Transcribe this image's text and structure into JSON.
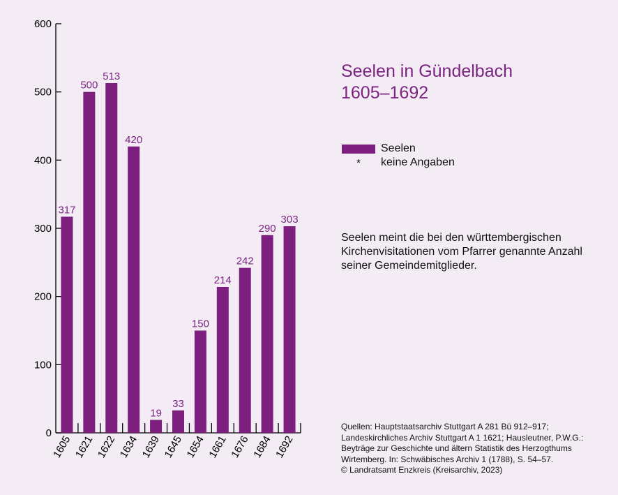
{
  "title_lines": [
    "Seelen in Gündelbach",
    "1605–1692"
  ],
  "legend": [
    {
      "label": "Seelen",
      "marker": "bar"
    },
    {
      "label": "keine Angaben",
      "marker": "*"
    }
  ],
  "note": "Seelen meint die bei den württembergischen Kirchenvisitationen vom Pfarrer genannte Anzahl seiner Gemeindemitglieder.",
  "sources": [
    "Quellen: Hauptstaatsarchiv Stuttgart A 281 Bü 912–917;",
    "Landeskirchliches Archiv Stuttgart A 1 1621; Hausleutner, P.W.G.:",
    "Beyträge zur Geschichte und ältern Statistik des Herzogthums",
    "Wirtemberg. In: Schwäbisches Archiv 1 (1788), S. 54–57.",
    "© Landratsamt Enzkreis (Kreisarchiv, 2023)"
  ],
  "colors": {
    "bar": "#7d1f7f",
    "label": "#7d2382",
    "axis": "#000000",
    "background": "#f3ecf5"
  },
  "chart_data": {
    "type": "bar",
    "categories": [
      "1605",
      "1621",
      "1622",
      "1634",
      "1639",
      "1645",
      "1654",
      "1661",
      "1676",
      "1684",
      "1692"
    ],
    "series": [
      {
        "name": "Seelen",
        "values": [
          317,
          500,
          513,
          420,
          19,
          33,
          150,
          214,
          242,
          290,
          303
        ]
      }
    ],
    "yticks": [
      0,
      100,
      200,
      300,
      400,
      500,
      600
    ],
    "ylim": [
      0,
      600
    ],
    "grid": false,
    "legend_position": "right"
  }
}
